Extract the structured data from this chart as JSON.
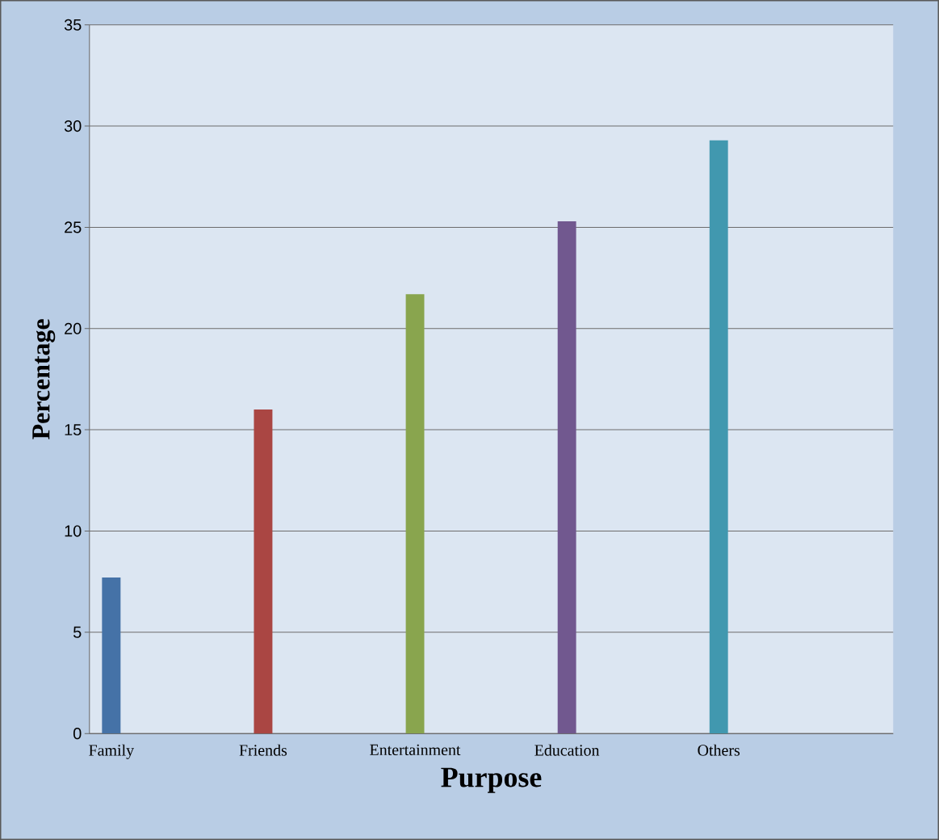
{
  "chart_data": {
    "type": "bar",
    "xlabel": "Purpose",
    "ylabel": "Percentage",
    "categories": [
      "Family",
      "Friends",
      "Entertainment",
      "Education",
      "Others"
    ],
    "values": [
      7.7,
      16.0,
      21.7,
      25.3,
      29.3
    ],
    "colors": [
      "#4572a7",
      "#aa4643",
      "#89a54e",
      "#71588f",
      "#4198af"
    ],
    "ylim": [
      0,
      35
    ],
    "yticks": [
      0,
      5,
      10,
      15,
      20,
      25,
      30,
      35
    ],
    "grid": "y"
  }
}
